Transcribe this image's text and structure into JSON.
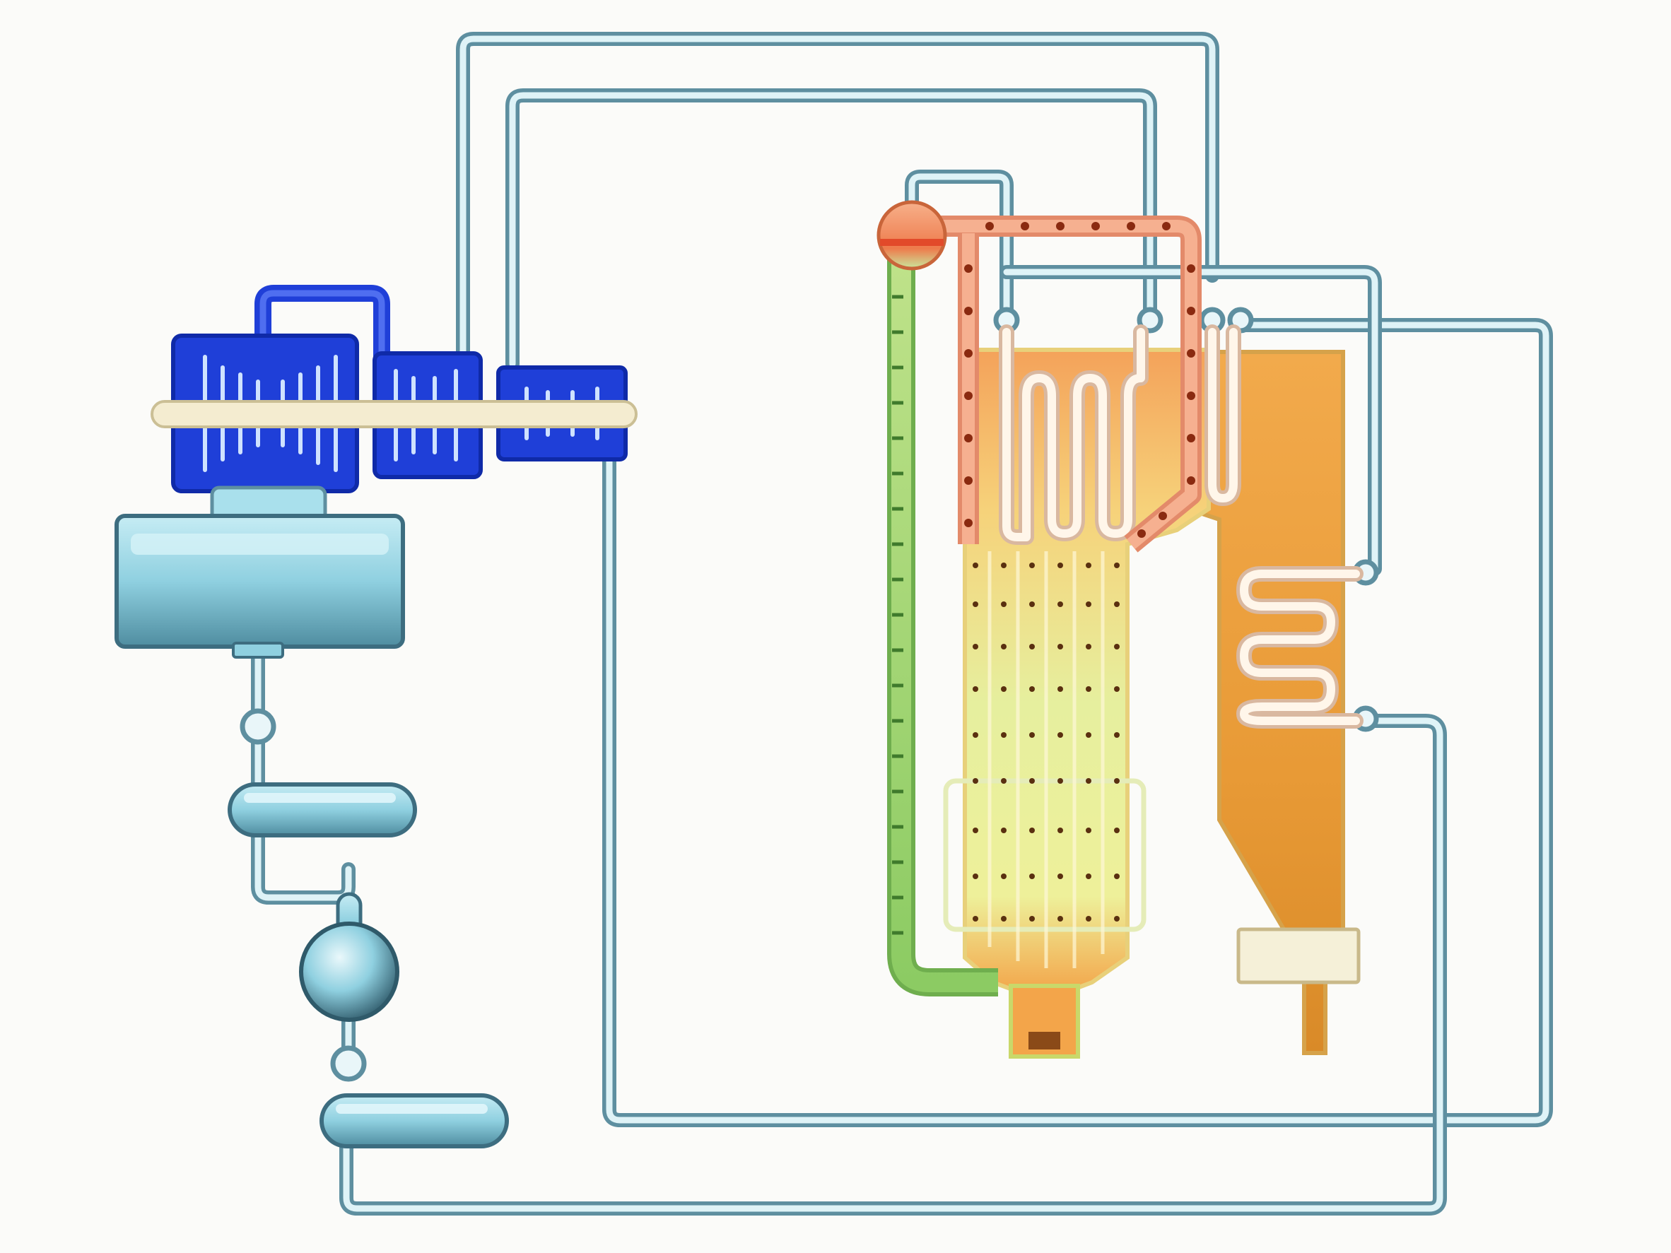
{
  "diagram": {
    "kind": "steam power plant schematic",
    "labels": [],
    "components": [
      {
        "id": "turbine",
        "icon": "steam-turbine-icon",
        "color": "#1f3fd8"
      },
      {
        "id": "condenser",
        "icon": "condenser-icon",
        "color": "#8fd3e4"
      },
      {
        "id": "low-pressure-heater",
        "icon": "heater-icon",
        "color": "#8fd3e4"
      },
      {
        "id": "deaerator",
        "icon": "deaerator-icon",
        "color": "#8fd3e4"
      },
      {
        "id": "high-pressure-heater",
        "icon": "heater-icon",
        "color": "#8fd3e4"
      },
      {
        "id": "boiler-drum",
        "icon": "drum-icon",
        "color": "#f08a5a"
      },
      {
        "id": "downcomer",
        "icon": "downcomer-icon",
        "color": "#7cc46a"
      },
      {
        "id": "furnace",
        "icon": "furnace-icon",
        "color": "#f2c46a"
      },
      {
        "id": "superheater",
        "icon": "superheater-coil-icon",
        "color": "#f0a050"
      },
      {
        "id": "reheater",
        "icon": "reheater-coil-icon",
        "color": "#f0a050"
      },
      {
        "id": "economizer",
        "icon": "economizer-coil-icon",
        "color": "#e09a3a"
      },
      {
        "id": "air-preheater",
        "icon": "air-preheater-icon",
        "color": "#f5f0d8"
      }
    ],
    "colors": {
      "pipe": "#5e8fa0",
      "turbine": "#1f3fd8",
      "water": "#8fd3e4",
      "hot": "#f08a5a",
      "cool": "#7cc46a",
      "flue": "#e8a040"
    }
  }
}
